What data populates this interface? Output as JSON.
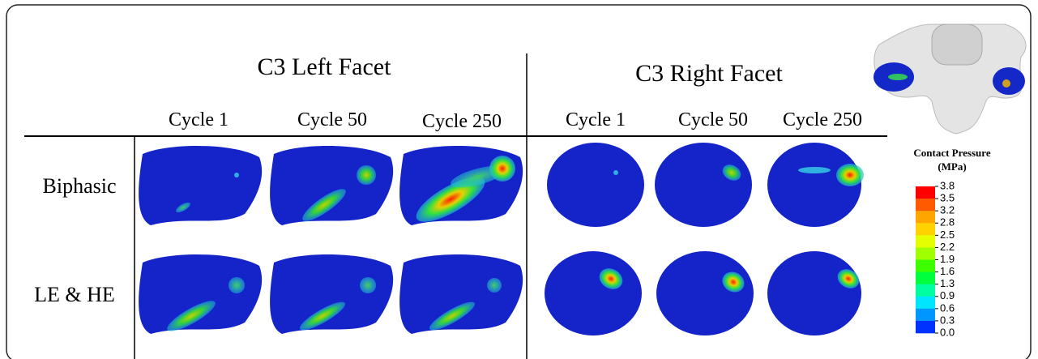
{
  "header": {
    "left": "C3 Left Facet",
    "right": "C3 Right Facet"
  },
  "columns": {
    "left": [
      "Cycle 1",
      "Cycle 50",
      "Cycle 250"
    ],
    "right": [
      "Cycle 1",
      "Cycle 50",
      "Cycle 250"
    ]
  },
  "rows": [
    "Biphasic",
    "LE & HE"
  ],
  "legend": {
    "title": "Contact Pressure",
    "unit": "(MPa)",
    "ticks": [
      "3.8",
      "3.5",
      "3.2",
      "2.8",
      "2.5",
      "2.2",
      "1.9",
      "1.6",
      "1.3",
      "0.9",
      "0.6",
      "0.3",
      "0.0"
    ]
  }
}
